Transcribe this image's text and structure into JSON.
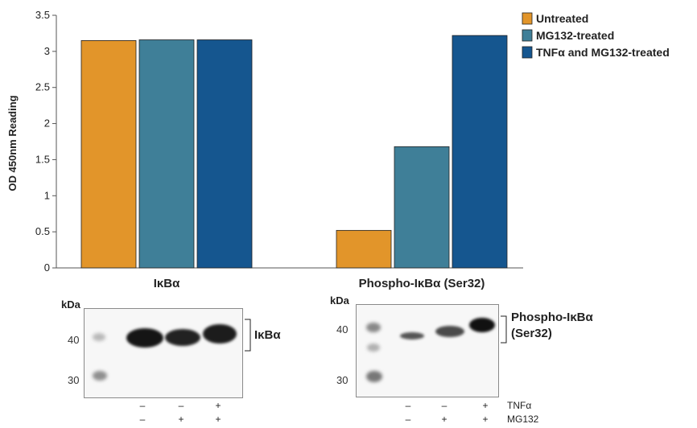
{
  "chart_data": {
    "type": "bar",
    "ylabel": "OD 450nm Reading",
    "ylim": [
      0,
      3.5
    ],
    "yticks": [
      "0",
      "0.5",
      "1",
      "1.5",
      "2",
      "2.5",
      "3",
      "3.5"
    ],
    "categories": [
      "IκBα",
      "Phospho-IκBα (Ser32)"
    ],
    "series": [
      {
        "name": "Untreated",
        "color": "#e2952a",
        "values": [
          3.15,
          0.52
        ]
      },
      {
        "name": "MG132-treated",
        "color": "#3f7f98",
        "values": [
          3.16,
          1.68
        ]
      },
      {
        "name": "TNFα and MG132-treated",
        "color": "#15568f",
        "values": [
          3.16,
          3.22
        ]
      }
    ],
    "legend_position": "top-right",
    "grid": false
  },
  "blots": {
    "kda_label": "kDa",
    "left": {
      "markers": [
        "40",
        "30"
      ],
      "protein_label": "IκBα",
      "tnf_signs": [
        "–",
        "–",
        "+"
      ],
      "mg132_signs": [
        "–",
        "+",
        "+"
      ]
    },
    "right": {
      "markers": [
        "40",
        "30"
      ],
      "protein_label_line1": "Phospho-IκBα",
      "protein_label_line2": "(Ser32)",
      "tnf_signs": [
        "–",
        "–",
        "+"
      ],
      "mg132_signs": [
        "–",
        "+",
        "+"
      ],
      "tnf_label": "TNFα",
      "mg132_label": "MG132"
    }
  }
}
